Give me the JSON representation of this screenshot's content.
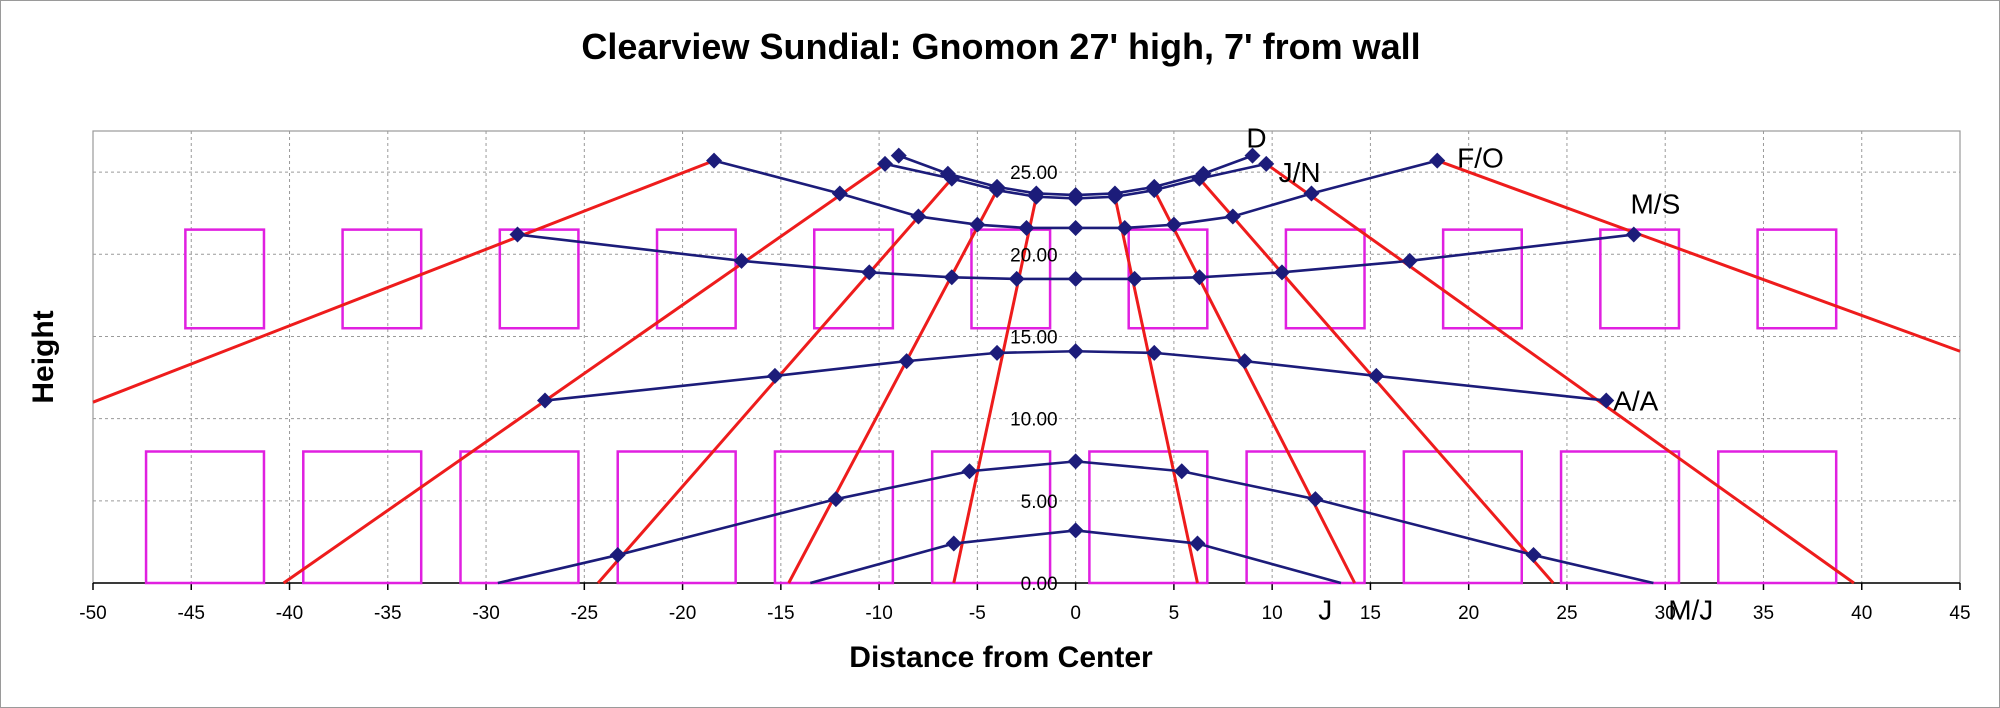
{
  "chart_data": {
    "type": "line",
    "title": "Clearview Sundial: Gnomon 27' high, 7' from wall",
    "xlabel": "Distance from Center",
    "ylabel": "Height",
    "xlim": [
      -50,
      45
    ],
    "ylim": [
      0,
      27.5
    ],
    "x_ticks": [
      "-50",
      "-45",
      "-40",
      "-35",
      "-30",
      "-25",
      "-20",
      "-15",
      "-10",
      "-5",
      "0",
      "5",
      "10",
      "15",
      "20",
      "25",
      "30",
      "35",
      "40",
      "45"
    ],
    "y_ticks": [
      "0.00",
      "5.00",
      "10.00",
      "15.00",
      "20.00",
      "25.00"
    ],
    "grid": true,
    "colors": {
      "date_lines": "#1c1c7a",
      "marker": "#1c1c7a",
      "hour_lines": "#ee1c1c",
      "windows": "#e020e0",
      "grid": "#9a9a9a"
    },
    "date_lines": [
      {
        "name": "D",
        "points": [
          [
            -18.4,
            25.7
          ],
          [
            -12,
            23.7
          ],
          [
            -8,
            22.3
          ],
          [
            -5,
            21.8
          ],
          [
            -2.5,
            21.6
          ],
          [
            0,
            21.6
          ],
          [
            2.5,
            21.6
          ],
          [
            5,
            21.8
          ],
          [
            8,
            22.3
          ],
          [
            12,
            23.7
          ],
          [
            18.4,
            25.7
          ]
        ]
      },
      {
        "name": "J/N",
        "points": [
          [
            -9.7,
            25.5
          ],
          [
            -6.3,
            24.6
          ],
          [
            -4,
            23.9
          ],
          [
            -2,
            23.5
          ],
          [
            0,
            23.4
          ],
          [
            2,
            23.5
          ],
          [
            4,
            23.9
          ],
          [
            6.3,
            24.6
          ],
          [
            9.7,
            25.5
          ]
        ]
      },
      {
        "name": "F/O",
        "points": [
          [
            -9,
            26.0
          ],
          [
            -6.5,
            24.9
          ],
          [
            -4,
            24.1
          ],
          [
            -2,
            23.7
          ],
          [
            0,
            23.6
          ],
          [
            2,
            23.7
          ],
          [
            4,
            24.1
          ],
          [
            6.5,
            24.9
          ],
          [
            9,
            26.0
          ]
        ]
      },
      {
        "name": "M/S",
        "points": [
          [
            -28.4,
            21.2
          ],
          [
            -17,
            19.6
          ],
          [
            -10.5,
            18.9
          ],
          [
            -6.3,
            18.6
          ],
          [
            -3,
            18.5
          ],
          [
            0,
            18.5
          ],
          [
            3,
            18.5
          ],
          [
            6.3,
            18.6
          ],
          [
            10.5,
            18.9
          ],
          [
            17,
            19.6
          ],
          [
            28.4,
            21.2
          ]
        ]
      },
      {
        "name": "A/A",
        "points": [
          [
            -27,
            11.1
          ],
          [
            -15.3,
            12.6
          ],
          [
            -8.6,
            13.5
          ],
          [
            -4,
            14.0
          ],
          [
            0,
            14.1
          ],
          [
            4,
            14.0
          ],
          [
            8.6,
            13.5
          ],
          [
            15.3,
            12.6
          ],
          [
            27,
            11.1
          ]
        ]
      },
      {
        "name": "J",
        "points": [
          [
            -23.3,
            1.7
          ],
          [
            -12.2,
            5.1
          ],
          [
            -5.4,
            6.8
          ],
          [
            0,
            7.4
          ],
          [
            5.4,
            6.8
          ],
          [
            12.2,
            5.1
          ],
          [
            23.3,
            1.7
          ]
        ]
      },
      {
        "name": "M/J",
        "points": [
          [
            -6.2,
            2.4
          ],
          [
            0,
            3.2
          ],
          [
            6.2,
            2.4
          ]
        ]
      }
    ],
    "date_line_tails": [
      {
        "points": [
          [
            -29.4,
            0.0
          ],
          [
            -23.3,
            1.7
          ]
        ]
      },
      {
        "points": [
          [
            -13.5,
            0.0
          ],
          [
            -6.2,
            2.4
          ]
        ]
      },
      {
        "points": [
          [
            23.3,
            1.7
          ],
          [
            29.4,
            0.0
          ]
        ]
      },
      {
        "points": [
          [
            6.2,
            2.4
          ],
          [
            13.5,
            0.0
          ]
        ]
      }
    ],
    "markers": [
      [
        -18.4,
        25.7
      ],
      [
        -12,
        23.7
      ],
      [
        -8,
        22.3
      ],
      [
        -5,
        21.8
      ],
      [
        -2.5,
        21.6
      ],
      [
        0,
        21.6
      ],
      [
        2.5,
        21.6
      ],
      [
        5,
        21.8
      ],
      [
        8,
        22.3
      ],
      [
        12,
        23.7
      ],
      [
        18.4,
        25.7
      ],
      [
        -9.7,
        25.5
      ],
      [
        -6.3,
        24.6
      ],
      [
        -4,
        23.9
      ],
      [
        -2,
        23.5
      ],
      [
        0,
        23.4
      ],
      [
        2,
        23.5
      ],
      [
        4,
        23.9
      ],
      [
        6.3,
        24.6
      ],
      [
        9.7,
        25.5
      ],
      [
        -9,
        26.0
      ],
      [
        -6.5,
        24.9
      ],
      [
        -4,
        24.1
      ],
      [
        -2,
        23.7
      ],
      [
        0,
        23.6
      ],
      [
        2,
        23.7
      ],
      [
        4,
        24.1
      ],
      [
        6.5,
        24.9
      ],
      [
        9,
        26.0
      ],
      [
        -28.4,
        21.2
      ],
      [
        -17,
        19.6
      ],
      [
        -10.5,
        18.9
      ],
      [
        -6.3,
        18.6
      ],
      [
        -3,
        18.5
      ],
      [
        0,
        18.5
      ],
      [
        3,
        18.5
      ],
      [
        6.3,
        18.6
      ],
      [
        10.5,
        18.9
      ],
      [
        17,
        19.6
      ],
      [
        28.4,
        21.2
      ],
      [
        -27,
        11.1
      ],
      [
        -15.3,
        12.6
      ],
      [
        -8.6,
        13.5
      ],
      [
        -4,
        14.0
      ],
      [
        0,
        14.1
      ],
      [
        4,
        14.0
      ],
      [
        8.6,
        13.5
      ],
      [
        15.3,
        12.6
      ],
      [
        27,
        11.1
      ],
      [
        -23.3,
        1.7
      ],
      [
        -12.2,
        5.1
      ],
      [
        -5.4,
        6.8
      ],
      [
        0,
        7.4
      ],
      [
        5.4,
        6.8
      ],
      [
        12.2,
        5.1
      ],
      [
        23.3,
        1.7
      ],
      [
        -6.2,
        2.4
      ],
      [
        0,
        3.2
      ],
      [
        6.2,
        2.4
      ]
    ],
    "hour_lines": [
      {
        "points": [
          [
            -50,
            11.0
          ],
          [
            -18.4,
            25.7
          ]
        ]
      },
      {
        "points": [
          [
            -40.3,
            0.0
          ],
          [
            -9.7,
            25.5
          ]
        ]
      },
      {
        "points": [
          [
            -24.3,
            0.0
          ],
          [
            -6.3,
            24.6
          ]
        ]
      },
      {
        "points": [
          [
            -14.6,
            0.0
          ],
          [
            -4,
            23.9
          ]
        ]
      },
      {
        "points": [
          [
            -6.2,
            0.0
          ],
          [
            -2,
            23.5
          ]
        ]
      },
      {
        "points": [
          [
            6.2,
            0.0
          ],
          [
            2,
            23.5
          ]
        ]
      },
      {
        "points": [
          [
            14.2,
            0.0
          ],
          [
            4,
            23.9
          ]
        ]
      },
      {
        "points": [
          [
            24.3,
            0.0
          ],
          [
            6.3,
            24.6
          ]
        ]
      },
      {
        "points": [
          [
            39.6,
            0.0
          ],
          [
            9.7,
            25.5
          ]
        ]
      },
      {
        "points": [
          [
            45,
            14.1
          ],
          [
            18.4,
            25.7
          ]
        ]
      }
    ],
    "windows_upper": [
      [
        -45.3,
        -41.3
      ],
      [
        -37.3,
        -33.3
      ],
      [
        -29.3,
        -25.3
      ],
      [
        -21.3,
        -17.3
      ],
      [
        -13.3,
        -9.3
      ],
      [
        -5.3,
        -1.3
      ],
      [
        2.7,
        6.7
      ],
      [
        10.7,
        14.7
      ],
      [
        18.7,
        22.7
      ],
      [
        26.7,
        30.7
      ],
      [
        34.7,
        38.7
      ]
    ],
    "windows_upper_y": [
      15.5,
      21.5
    ],
    "windows_lower": [
      [
        -47.3,
        -41.3
      ],
      [
        -39.3,
        -33.3
      ],
      [
        -31.3,
        -25.3
      ],
      [
        -23.3,
        -17.3
      ],
      [
        -15.3,
        -9.3
      ],
      [
        -7.3,
        -1.3
      ],
      [
        0.7,
        6.7
      ],
      [
        8.7,
        14.7
      ],
      [
        16.7,
        22.7
      ],
      [
        24.7,
        30.7
      ],
      [
        32.7,
        38.7
      ]
    ],
    "windows_lower_y": [
      0.0,
      8.0
    ],
    "annotations": [
      {
        "text": "D",
        "x": 9.2,
        "y": 27.1
      },
      {
        "text": "J/N",
        "x": 11.4,
        "y": 25.0
      },
      {
        "text": "F/O",
        "x": 20.6,
        "y": 25.9
      },
      {
        "text": "M/S",
        "x": 29.5,
        "y": 23.1
      },
      {
        "text": "A/A",
        "x": 28.5,
        "y": 11.1
      },
      {
        "text": "J",
        "x": 12.7,
        "y": -1.6
      },
      {
        "text": "M/J",
        "x": 31.3,
        "y": -1.6
      }
    ]
  }
}
